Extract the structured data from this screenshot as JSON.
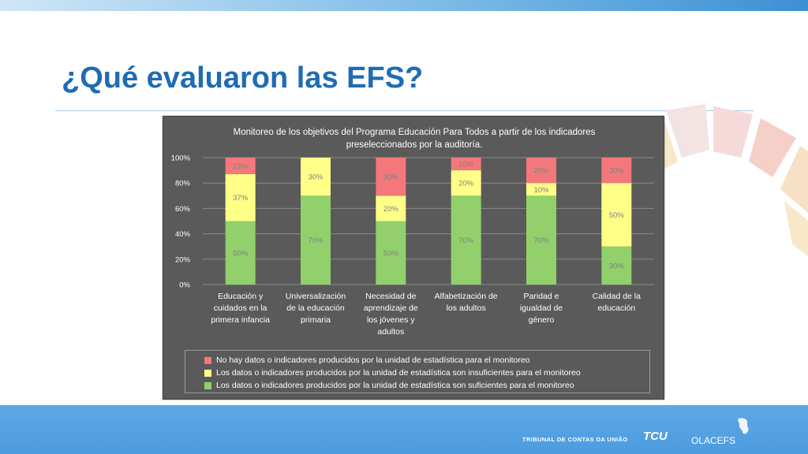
{
  "slide": {
    "title": "¿Qué evaluaron las EFS?"
  },
  "footer": {
    "tcu_text": "TRIBUNAL DE CONTAS DA UNIÃO",
    "tcu_logo": "TCU",
    "olacefs_logo": "OLACEFS"
  },
  "colors": {
    "red": "#f4787b",
    "yellow": "#ffff88",
    "green": "#92d06b",
    "chart_bg": "#5a5a5a",
    "title_blue": "#1f6cb3"
  },
  "chart_data": {
    "type": "bar",
    "stacked": true,
    "title_lines": [
      "Monitoreo de los objetivos del Programa Educación Para Todos a partir de los indicadores",
      "preseleccionados por la auditoría."
    ],
    "categories": [
      [
        "Educación y",
        "cuidados en la",
        "primera infancia"
      ],
      [
        "Universalización",
        "de la educación",
        "primaria"
      ],
      [
        "Necesidad de",
        "aprendizaje de",
        "los jóvenes y",
        "adultos"
      ],
      [
        "Alfabetización de",
        "los adultos"
      ],
      [
        "Paridad e",
        "igualdad de",
        "género"
      ],
      [
        "Calidad de la",
        "educación"
      ]
    ],
    "series": [
      {
        "name": "Los datos o indicadores producidos por la unidad de estadística son suficientes para el monitoreo",
        "color": "#92d06b",
        "values": [
          50,
          70,
          50,
          70,
          70,
          30
        ],
        "labels": [
          "50%",
          "70%",
          "50%",
          "70%",
          "70%",
          "30%"
        ]
      },
      {
        "name": "Los datos o indicadores producidos por la unidad de estadística son insuficientes para el monitoreo",
        "color": "#ffff88",
        "values": [
          37,
          30,
          20,
          20,
          10,
          50
        ],
        "labels": [
          "37%",
          "30%",
          "20%",
          "20%",
          "10%",
          "50%"
        ]
      },
      {
        "name": "No hay datos o indicadores producidos por la unidad de estadística para el monitoreo",
        "color": "#f4787b",
        "values": [
          13,
          0,
          30,
          10,
          20,
          20
        ],
        "labels": [
          "13%",
          "",
          "30%",
          "10%",
          "20%",
          "20%"
        ]
      }
    ],
    "legend_order": [
      2,
      1,
      0
    ],
    "yticks": [
      "0%",
      "20%",
      "40%",
      "60%",
      "80%",
      "100%"
    ],
    "ylim": [
      0,
      100
    ],
    "grid": true,
    "legend_position": "bottom"
  }
}
